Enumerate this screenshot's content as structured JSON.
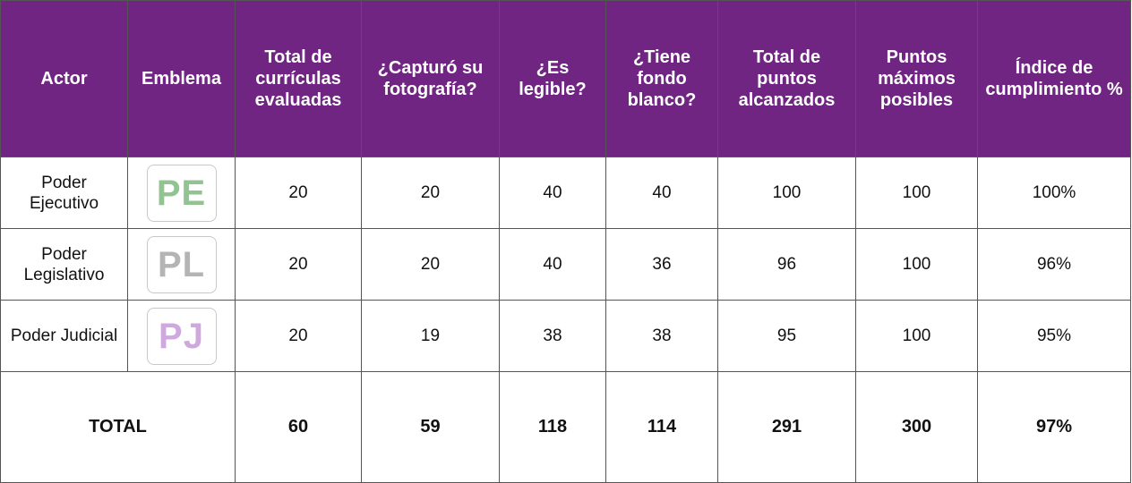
{
  "table": {
    "header": [
      "Actor",
      "Emblema",
      "Total de currículas evaluadas",
      "¿Capturó su fotografía?",
      "¿Es legible?",
      "¿Tiene fondo blanco?",
      "Total de puntos alcanzados",
      "Puntos máximos posibles",
      "Índice de cumplimiento %"
    ],
    "rows": [
      {
        "actor": "Poder Ejecutivo",
        "emblem": "PE",
        "cells": [
          "20",
          "20",
          "40",
          "40",
          "100",
          "100",
          "100%"
        ]
      },
      {
        "actor": "Poder Legislativo",
        "emblem": "PL",
        "cells": [
          "20",
          "20",
          "40",
          "36",
          "96",
          "100",
          "96%"
        ]
      },
      {
        "actor": "Poder Judicial",
        "emblem": "PJ",
        "cells": [
          "20",
          "19",
          "38",
          "38",
          "95",
          "100",
          "95%"
        ]
      }
    ],
    "total": {
      "label": "TOTAL",
      "cells": [
        "60",
        "59",
        "118",
        "114",
        "291",
        "300",
        "97%"
      ]
    }
  }
}
